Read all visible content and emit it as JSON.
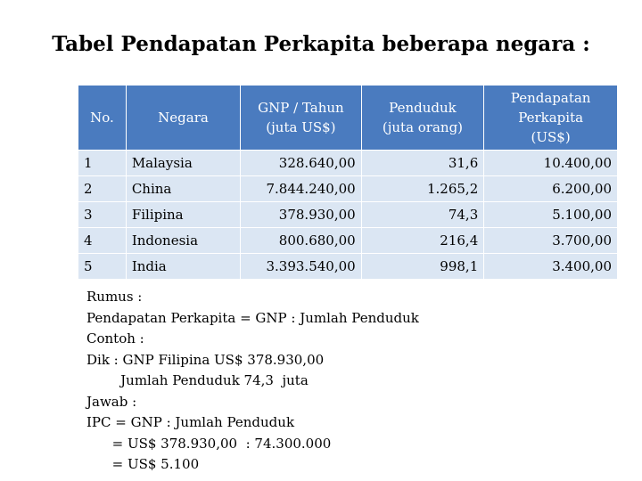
{
  "title": "Tabel Pendapatan Perkapita beberapa negara :",
  "table": {
    "headers": {
      "no": "No.",
      "negara": "Negara",
      "gnp_line1": "GNP / Tahun",
      "gnp_line2": "(juta US$)",
      "penduduk_line1": "Penduduk",
      "penduduk_line2": "(juta orang)",
      "ipc_line1": "Pendapatan",
      "ipc_line2": "Perkapita",
      "ipc_line3": "(US$)"
    },
    "rows": [
      {
        "no": "1",
        "negara": "Malaysia",
        "gnp": "328.640,00",
        "penduduk": "31,6",
        "ipc": "10.400,00"
      },
      {
        "no": "2",
        "negara": "China",
        "gnp": "7.844.240,00",
        "penduduk": "1.265,2",
        "ipc": "6.200,00"
      },
      {
        "no": "3",
        "negara": "Filipina",
        "gnp": "378.930,00",
        "penduduk": "74,3",
        "ipc": "5.100,00"
      },
      {
        "no": "4",
        "negara": "Indonesia",
        "gnp": "800.680,00",
        "penduduk": "216,4",
        "ipc": "3.700,00"
      },
      {
        "no": "5",
        "negara": "India",
        "gnp": "3.393.540,00",
        "penduduk": "998,1",
        "ipc": "3.400,00"
      }
    ]
  },
  "notes": [
    "Rumus :",
    "Pendapatan Perkapita = GNP : Jumlah Penduduk",
    "Contoh :",
    "Dik : GNP Filipina US$ 378.930,00",
    "        Jumlah Penduduk 74,3  juta",
    "Jawab :",
    "IPC = GNP : Jumlah Penduduk",
    "      = US$ 378.930,00  : 74.300.000",
    "      = US$ 5.100"
  ],
  "colors": {
    "header_bg": "#4a7bbf",
    "row_bg": "#dbe6f3"
  }
}
